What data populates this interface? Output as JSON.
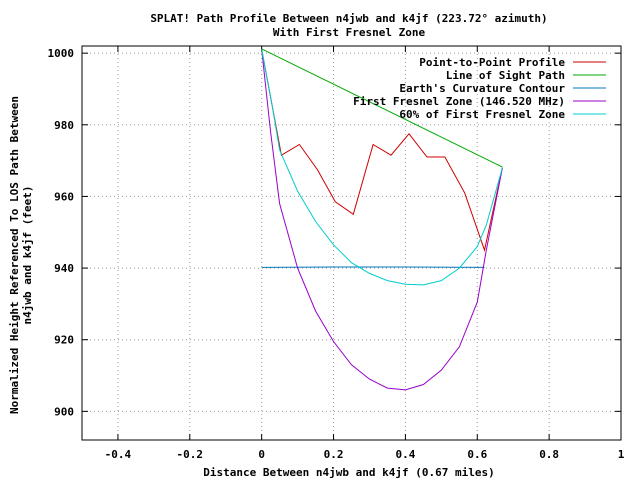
{
  "chart_data": {
    "type": "line",
    "title": "SPLAT! Path Profile Between n4jwb and k4jf (223.72° azimuth)",
    "subtitle": "With First Fresnel Zone",
    "xlabel": "Distance Between n4jwb and k4jf (0.67 miles)",
    "ylabel_line1": "Normalized Height Referenced To LOS Path Between",
    "ylabel_line2": "n4jwb and k4jf (feet)",
    "xlim": [
      -0.5,
      1.0
    ],
    "ylim": [
      892,
      1002
    ],
    "x_ticks": [
      -0.4,
      -0.2,
      0,
      0.2,
      0.4,
      0.6,
      0.8,
      1
    ],
    "x_tick_labels": [
      "-0.4",
      "-0.2",
      "0",
      "0.2",
      "0.4",
      "0.6",
      "0.8",
      "1"
    ],
    "y_ticks": [
      900,
      920,
      940,
      960,
      980,
      1000
    ],
    "y_tick_labels": [
      "900",
      "920",
      "940",
      "960",
      "980",
      "1000"
    ],
    "grid": true,
    "legend_position": "top-right",
    "series": [
      {
        "name": "Point-to-Point Profile",
        "color": "#cc0000",
        "points": [
          [
            0,
            1001
          ],
          [
            0.055,
            971.5
          ],
          [
            0.105,
            974.5
          ],
          [
            0.155,
            967.5
          ],
          [
            0.205,
            958.5
          ],
          [
            0.255,
            955
          ],
          [
            0.31,
            974.5
          ],
          [
            0.36,
            971.5
          ],
          [
            0.41,
            977.5
          ],
          [
            0.46,
            971
          ],
          [
            0.51,
            971
          ],
          [
            0.565,
            961
          ],
          [
            0.62,
            945
          ],
          [
            0.67,
            968
          ]
        ]
      },
      {
        "name": "Line of Sight Path",
        "color": "#00aa00",
        "points": [
          [
            0,
            1001.2
          ],
          [
            0.67,
            968.2
          ]
        ]
      },
      {
        "name": "Earth's Curvature Contour",
        "color": "#0077bb",
        "points": [
          [
            0,
            940.2
          ],
          [
            0.2,
            940.3
          ],
          [
            0.4,
            940.3
          ],
          [
            0.62,
            940.2
          ]
        ]
      },
      {
        "name": "First Fresnel Zone (146.520 MHz)",
        "color": "#9900cc",
        "points": [
          [
            0,
            1001
          ],
          [
            0.025,
            978
          ],
          [
            0.05,
            958
          ],
          [
            0.1,
            940
          ],
          [
            0.15,
            928
          ],
          [
            0.2,
            919.5
          ],
          [
            0.25,
            913
          ],
          [
            0.3,
            909
          ],
          [
            0.35,
            906.5
          ],
          [
            0.4,
            906
          ],
          [
            0.45,
            907.5
          ],
          [
            0.5,
            911.5
          ],
          [
            0.55,
            918
          ],
          [
            0.6,
            930.5
          ],
          [
            0.625,
            945
          ],
          [
            0.67,
            968
          ]
        ]
      },
      {
        "name": "60% of First Fresnel Zone",
        "color": "#00cccc",
        "points": [
          [
            0,
            1001
          ],
          [
            0.03,
            985
          ],
          [
            0.05,
            973
          ],
          [
            0.1,
            961.5
          ],
          [
            0.15,
            953
          ],
          [
            0.2,
            946.5
          ],
          [
            0.25,
            941.5
          ],
          [
            0.3,
            938.5
          ],
          [
            0.35,
            936.5
          ],
          [
            0.4,
            935.5
          ],
          [
            0.45,
            935.3
          ],
          [
            0.5,
            936.5
          ],
          [
            0.55,
            940
          ],
          [
            0.6,
            946
          ],
          [
            0.625,
            952
          ],
          [
            0.67,
            968
          ]
        ]
      }
    ]
  }
}
